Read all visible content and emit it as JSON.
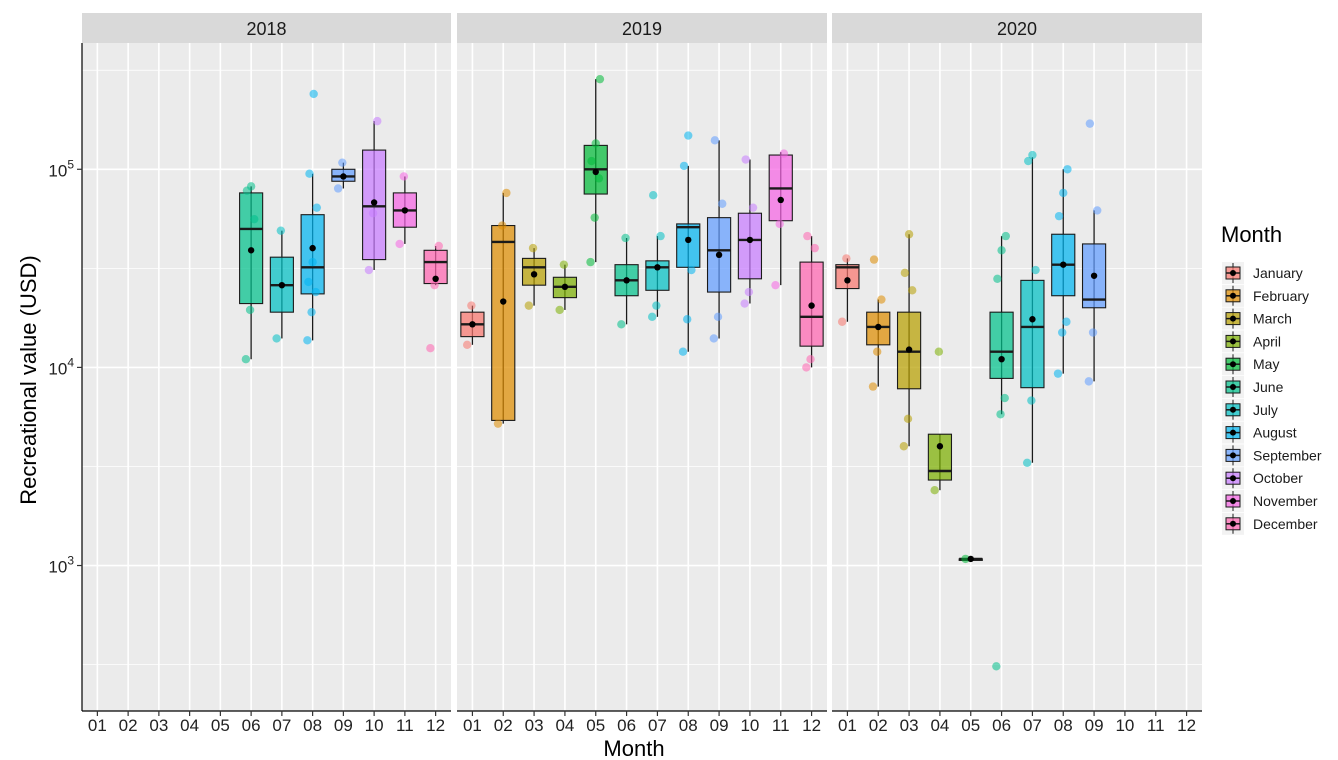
{
  "chart_data": {
    "type": "box",
    "xlabel": "Month",
    "ylabel": "Recreational value (USD)",
    "yscale": "log10",
    "ylim": [
      200,
      400000
    ],
    "y_ticks": [
      {
        "value": 1000,
        "base": "10",
        "exp": "3"
      },
      {
        "value": 10000,
        "base": "10",
        "exp": "4"
      },
      {
        "value": 100000,
        "base": "10",
        "exp": "5"
      }
    ],
    "categories": [
      "01",
      "02",
      "03",
      "04",
      "05",
      "06",
      "07",
      "08",
      "09",
      "10",
      "11",
      "12"
    ],
    "legend": {
      "title": "Month",
      "position": "right",
      "items": [
        {
          "label": "January",
          "color": "#F8766D"
        },
        {
          "label": "February",
          "color": "#DE8C00"
        },
        {
          "label": "March",
          "color": "#B79F00"
        },
        {
          "label": "April",
          "color": "#7CAE00"
        },
        {
          "label": "May",
          "color": "#00BA38"
        },
        {
          "label": "June",
          "color": "#00C08B"
        },
        {
          "label": "July",
          "color": "#00BFC4"
        },
        {
          "label": "August",
          "color": "#00B4F0"
        },
        {
          "label": "September",
          "color": "#619CFF"
        },
        {
          "label": "October",
          "color": "#C77CFF"
        },
        {
          "label": "November",
          "color": "#F564E3"
        },
        {
          "label": "December",
          "color": "#FF64B0"
        }
      ]
    },
    "panels": [
      {
        "title": "2018",
        "boxes": [
          {
            "month": "06",
            "min": 11000,
            "q1": 21000,
            "median": 50000,
            "q3": 76000,
            "max": 82000,
            "mean": 39000,
            "points": [
              11000,
              19500,
              56000,
              78000,
              82000
            ]
          },
          {
            "month": "07",
            "min": 14000,
            "q1": 19000,
            "median": 26000,
            "q3": 36000,
            "max": 49000,
            "mean": 26000,
            "points": [
              14000,
              49000
            ]
          },
          {
            "month": "08",
            "min": 13700,
            "q1": 23500,
            "median": 32000,
            "q3": 59000,
            "max": 95000,
            "mean": 40000,
            "points": [
              13700,
              19000,
              24000,
              27000,
              34000,
              64000,
              95000,
              240000
            ]
          },
          {
            "month": "09",
            "min": 80000,
            "q1": 87000,
            "median": 92000,
            "q3": 100000,
            "max": 108000,
            "mean": 92000,
            "points": [
              80000,
              108000
            ]
          },
          {
            "month": "10",
            "min": 31000,
            "q1": 35000,
            "median": 65000,
            "q3": 125000,
            "max": 175000,
            "mean": 68000,
            "points": [
              31000,
              60000,
              175000
            ]
          },
          {
            "month": "11",
            "min": 42000,
            "q1": 51000,
            "median": 62000,
            "q3": 76000,
            "max": 92000,
            "mean": 62000,
            "points": [
              42000,
              92000
            ]
          },
          {
            "month": "12",
            "min": 26000,
            "q1": 26500,
            "median": 34000,
            "q3": 39000,
            "max": 41000,
            "mean": 28000,
            "points": [
              12500,
              26000,
              41000
            ]
          }
        ]
      },
      {
        "title": "2019",
        "boxes": [
          {
            "month": "01",
            "min": 13000,
            "q1": 14300,
            "median": 16500,
            "q3": 19000,
            "max": 20500,
            "mean": 16500,
            "points": [
              13000,
              20500
            ]
          },
          {
            "month": "02",
            "min": 5200,
            "q1": 5400,
            "median": 43000,
            "q3": 52000,
            "max": 76000,
            "mean": 21500,
            "points": [
              5200,
              52000,
              76000
            ]
          },
          {
            "month": "03",
            "min": 20500,
            "q1": 26000,
            "median": 32000,
            "q3": 35500,
            "max": 40000,
            "mean": 29500,
            "points": [
              20500,
              40000
            ]
          },
          {
            "month": "04",
            "min": 19500,
            "q1": 22500,
            "median": 25500,
            "q3": 28500,
            "max": 33000,
            "mean": 25500,
            "points": [
              19500,
              33000
            ]
          },
          {
            "month": "05",
            "min": 34000,
            "q1": 75000,
            "median": 100000,
            "q3": 132000,
            "max": 285000,
            "mean": 97000,
            "points": [
              34000,
              57000,
              90000,
              110000,
              135000,
              285000
            ]
          },
          {
            "month": "06",
            "min": 16500,
            "q1": 23000,
            "median": 27500,
            "q3": 33000,
            "max": 45000,
            "mean": 27500,
            "points": [
              16500,
              45000
            ]
          },
          {
            "month": "07",
            "min": 18000,
            "q1": 24500,
            "median": 32000,
            "q3": 34500,
            "max": 46000,
            "mean": 32000,
            "points": [
              18000,
              20500,
              46000,
              74000
            ]
          },
          {
            "month": "08",
            "min": 12000,
            "q1": 32000,
            "median": 51000,
            "q3": 53000,
            "max": 104000,
            "mean": 44000,
            "points": [
              12000,
              17500,
              31000,
              104000,
              148000
            ]
          },
          {
            "month": "09",
            "min": 14000,
            "q1": 24000,
            "median": 39000,
            "q3": 57000,
            "max": 140000,
            "mean": 37000,
            "points": [
              14000,
              18000,
              67000,
              140000
            ]
          },
          {
            "month": "10",
            "min": 21000,
            "q1": 28000,
            "median": 44000,
            "q3": 60000,
            "max": 112000,
            "mean": 44000,
            "points": [
              21000,
              24000,
              64000,
              112000
            ]
          },
          {
            "month": "11",
            "min": 26000,
            "q1": 55000,
            "median": 80000,
            "q3": 118000,
            "max": 122000,
            "mean": 70000,
            "points": [
              26000,
              53000,
              120000
            ]
          },
          {
            "month": "12",
            "min": 10000,
            "q1": 12800,
            "median": 18000,
            "q3": 34000,
            "max": 46000,
            "mean": 20500,
            "points": [
              10000,
              11000,
              40000,
              46000
            ]
          }
        ]
      },
      {
        "title": "2020",
        "boxes": [
          {
            "month": "01",
            "min": 17000,
            "q1": 25000,
            "median": 32000,
            "q3": 33000,
            "max": 35500,
            "mean": 27500,
            "points": [
              17000,
              35500
            ]
          },
          {
            "month": "02",
            "min": 8000,
            "q1": 13000,
            "median": 16000,
            "q3": 19000,
            "max": 22000,
            "mean": 16000,
            "points": [
              8000,
              12000,
              22000,
              35000
            ]
          },
          {
            "month": "03",
            "min": 4000,
            "q1": 7800,
            "median": 12000,
            "q3": 19000,
            "max": 47000,
            "mean": 12300,
            "points": [
              4000,
              5500,
              24500,
              30000,
              47000
            ]
          },
          {
            "month": "04",
            "min": 2400,
            "q1": 2700,
            "median": 3000,
            "q3": 4600,
            "max": 4600,
            "mean": 4000,
            "points": [
              2400,
              12000
            ]
          },
          {
            "month": "05",
            "min": 1080,
            "q1": 1080,
            "median": 1080,
            "q3": 1080,
            "max": 1080,
            "mean": 1080,
            "points": [
              1080
            ]
          },
          {
            "month": "06",
            "min": 5800,
            "q1": 8800,
            "median": 12000,
            "q3": 19000,
            "max": 46000,
            "mean": 11000,
            "points": [
              310,
              5800,
              7000,
              28000,
              39000,
              46000
            ]
          },
          {
            "month": "07",
            "min": 3300,
            "q1": 7900,
            "median": 16000,
            "q3": 27500,
            "max": 115000,
            "mean": 17500,
            "points": [
              3300,
              6800,
              31000,
              110000,
              118000
            ]
          },
          {
            "month": "08",
            "min": 9300,
            "q1": 23000,
            "median": 33000,
            "q3": 47000,
            "max": 100000,
            "mean": 33000,
            "points": [
              9300,
              15000,
              17000,
              58000,
              76000,
              100000
            ]
          },
          {
            "month": "09",
            "min": 8500,
            "q1": 20000,
            "median": 22000,
            "q3": 42000,
            "max": 62000,
            "mean": 29000,
            "points": [
              8500,
              15000,
              62000,
              170000
            ]
          }
        ]
      }
    ]
  }
}
